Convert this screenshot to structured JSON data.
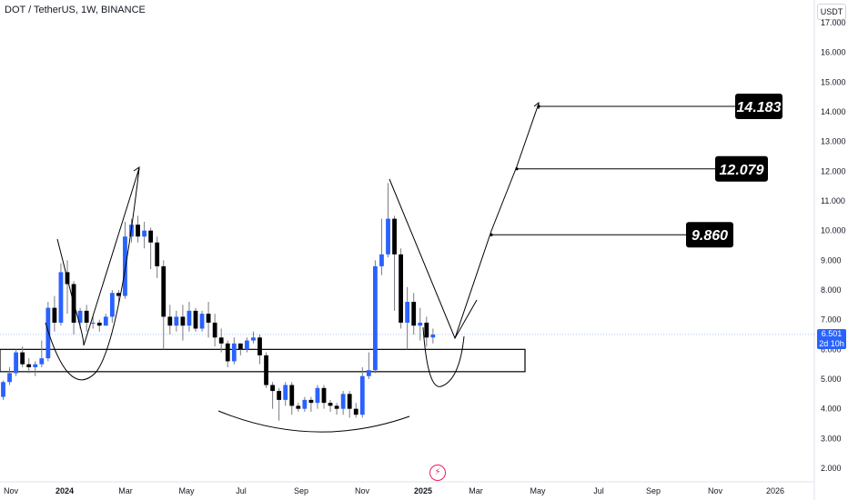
{
  "header": {
    "symbol_line": "DOT / TetherUS, 1W, BINANCE",
    "currency": "USDT"
  },
  "last_price": {
    "value": "6.501",
    "countdown": "2d 10h"
  },
  "colors": {
    "up": "#2962ff",
    "down": "#000000",
    "wick": "#787b86",
    "axis_text": "#131722",
    "price_line": "#2962ff",
    "flash": "#e91e63"
  },
  "icons": {
    "flash": "lightning-icon"
  },
  "chart_data": {
    "type": "candlestick",
    "title": "DOT / TetherUS, 1W, BINANCE",
    "ylim": [
      2.0,
      17.0
    ],
    "y_ticks": [
      "2.000",
      "3.000",
      "4.000",
      "5.000",
      "6.000",
      "7.000",
      "8.000",
      "9.000",
      "10.000",
      "11.000",
      "12.000",
      "13.000",
      "14.000",
      "15.000",
      "16.000",
      "17.000"
    ],
    "x_ticks": [
      "Nov",
      "2024",
      "Mar",
      "May",
      "Jul",
      "Sep",
      "Nov",
      "2025",
      "Mar",
      "May",
      "Jul",
      "Sep",
      "Nov",
      "2026"
    ],
    "candles": [
      [
        4.4,
        4.9,
        4.3,
        4.95
      ],
      [
        4.9,
        5.2,
        4.8,
        5.4
      ],
      [
        5.2,
        5.9,
        5.1,
        6.0
      ],
      [
        5.9,
        5.5,
        5.4,
        6.1
      ],
      [
        5.5,
        5.4,
        5.2,
        5.7
      ],
      [
        5.4,
        5.5,
        5.1,
        5.6
      ],
      [
        5.5,
        5.7,
        5.4,
        6.3
      ],
      [
        5.7,
        7.4,
        5.6,
        7.6
      ],
      [
        7.4,
        6.9,
        6.6,
        7.8
      ],
      [
        6.9,
        8.6,
        6.8,
        8.9
      ],
      [
        8.6,
        8.2,
        7.2,
        9.0
      ],
      [
        8.2,
        6.9,
        6.5,
        8.3
      ],
      [
        6.9,
        7.3,
        6.7,
        7.4
      ],
      [
        7.3,
        6.9,
        6.6,
        7.5
      ],
      [
        6.9,
        6.9,
        6.7,
        7.1
      ],
      [
        6.9,
        6.8,
        6.6,
        7.0
      ],
      [
        6.8,
        7.1,
        6.8,
        7.2
      ],
      [
        7.1,
        7.9,
        6.9,
        8.0
      ],
      [
        7.9,
        7.8,
        7.6,
        8.0
      ],
      [
        7.8,
        9.8,
        7.7,
        10.3
      ],
      [
        9.8,
        10.2,
        9.6,
        10.4
      ],
      [
        10.2,
        9.8,
        9.6,
        10.5
      ],
      [
        9.8,
        10.0,
        9.4,
        10.3
      ],
      [
        10.0,
        9.6,
        8.7,
        10.1
      ],
      [
        9.6,
        8.8,
        8.4,
        9.8
      ],
      [
        8.8,
        7.1,
        6.0,
        9.0
      ],
      [
        7.1,
        6.8,
        6.5,
        7.5
      ],
      [
        6.8,
        7.1,
        6.6,
        7.3
      ],
      [
        7.1,
        6.8,
        6.3,
        7.5
      ],
      [
        6.8,
        7.3,
        6.6,
        7.6
      ],
      [
        7.3,
        6.7,
        6.6,
        7.4
      ],
      [
        6.7,
        7.2,
        6.6,
        7.3
      ],
      [
        7.2,
        6.9,
        6.4,
        7.6
      ],
      [
        6.9,
        6.4,
        6.1,
        7.2
      ],
      [
        6.4,
        6.2,
        5.9,
        6.7
      ],
      [
        6.2,
        5.6,
        5.4,
        6.3
      ],
      [
        5.6,
        6.2,
        5.5,
        6.4
      ],
      [
        6.2,
        6.0,
        5.8,
        6.2
      ],
      [
        6.0,
        6.3,
        5.9,
        6.4
      ],
      [
        6.3,
        6.4,
        6.2,
        6.6
      ],
      [
        6.4,
        5.8,
        5.5,
        6.5
      ],
      [
        5.8,
        4.8,
        4.7,
        5.9
      ],
      [
        4.8,
        4.6,
        4.0,
        4.9
      ],
      [
        4.6,
        4.3,
        3.6,
        4.7
      ],
      [
        4.3,
        4.8,
        4.1,
        4.9
      ],
      [
        4.8,
        4.1,
        3.8,
        4.9
      ],
      [
        4.1,
        4.0,
        3.9,
        4.2
      ],
      [
        4.0,
        4.3,
        3.9,
        4.4
      ],
      [
        4.3,
        4.2,
        3.9,
        4.4
      ],
      [
        4.2,
        4.7,
        4.0,
        4.8
      ],
      [
        4.7,
        4.2,
        4.0,
        4.8
      ],
      [
        4.2,
        4.1,
        3.9,
        4.3
      ],
      [
        4.1,
        4.0,
        3.8,
        4.2
      ],
      [
        4.0,
        4.5,
        3.8,
        4.6
      ],
      [
        4.5,
        4.0,
        3.7,
        4.6
      ],
      [
        4.0,
        3.8,
        3.7,
        4.2
      ],
      [
        3.8,
        5.1,
        3.7,
        5.4
      ],
      [
        5.1,
        5.3,
        5.0,
        5.9
      ],
      [
        5.3,
        8.8,
        5.2,
        9.0
      ],
      [
        8.8,
        9.2,
        8.5,
        10.4
      ],
      [
        9.2,
        10.4,
        9.1,
        11.6
      ],
      [
        10.4,
        9.2,
        7.3,
        10.5
      ],
      [
        9.2,
        6.9,
        6.7,
        9.4
      ],
      [
        6.9,
        7.6,
        6.0,
        8.1
      ],
      [
        7.6,
        6.8,
        6.5,
        7.9
      ],
      [
        6.8,
        6.9,
        6.3,
        7.4
      ],
      [
        6.9,
        6.4,
        6.1,
        7.1
      ],
      [
        6.4,
        6.5,
        6.2,
        6.7
      ]
    ],
    "levels": [
      {
        "label": "14.183",
        "value": 14.183
      },
      {
        "label": "12.079",
        "value": 12.079
      },
      {
        "label": "9.860",
        "value": 9.86
      }
    ],
    "support_zone": [
      5.25,
      6.0
    ],
    "last_value": 6.501
  }
}
